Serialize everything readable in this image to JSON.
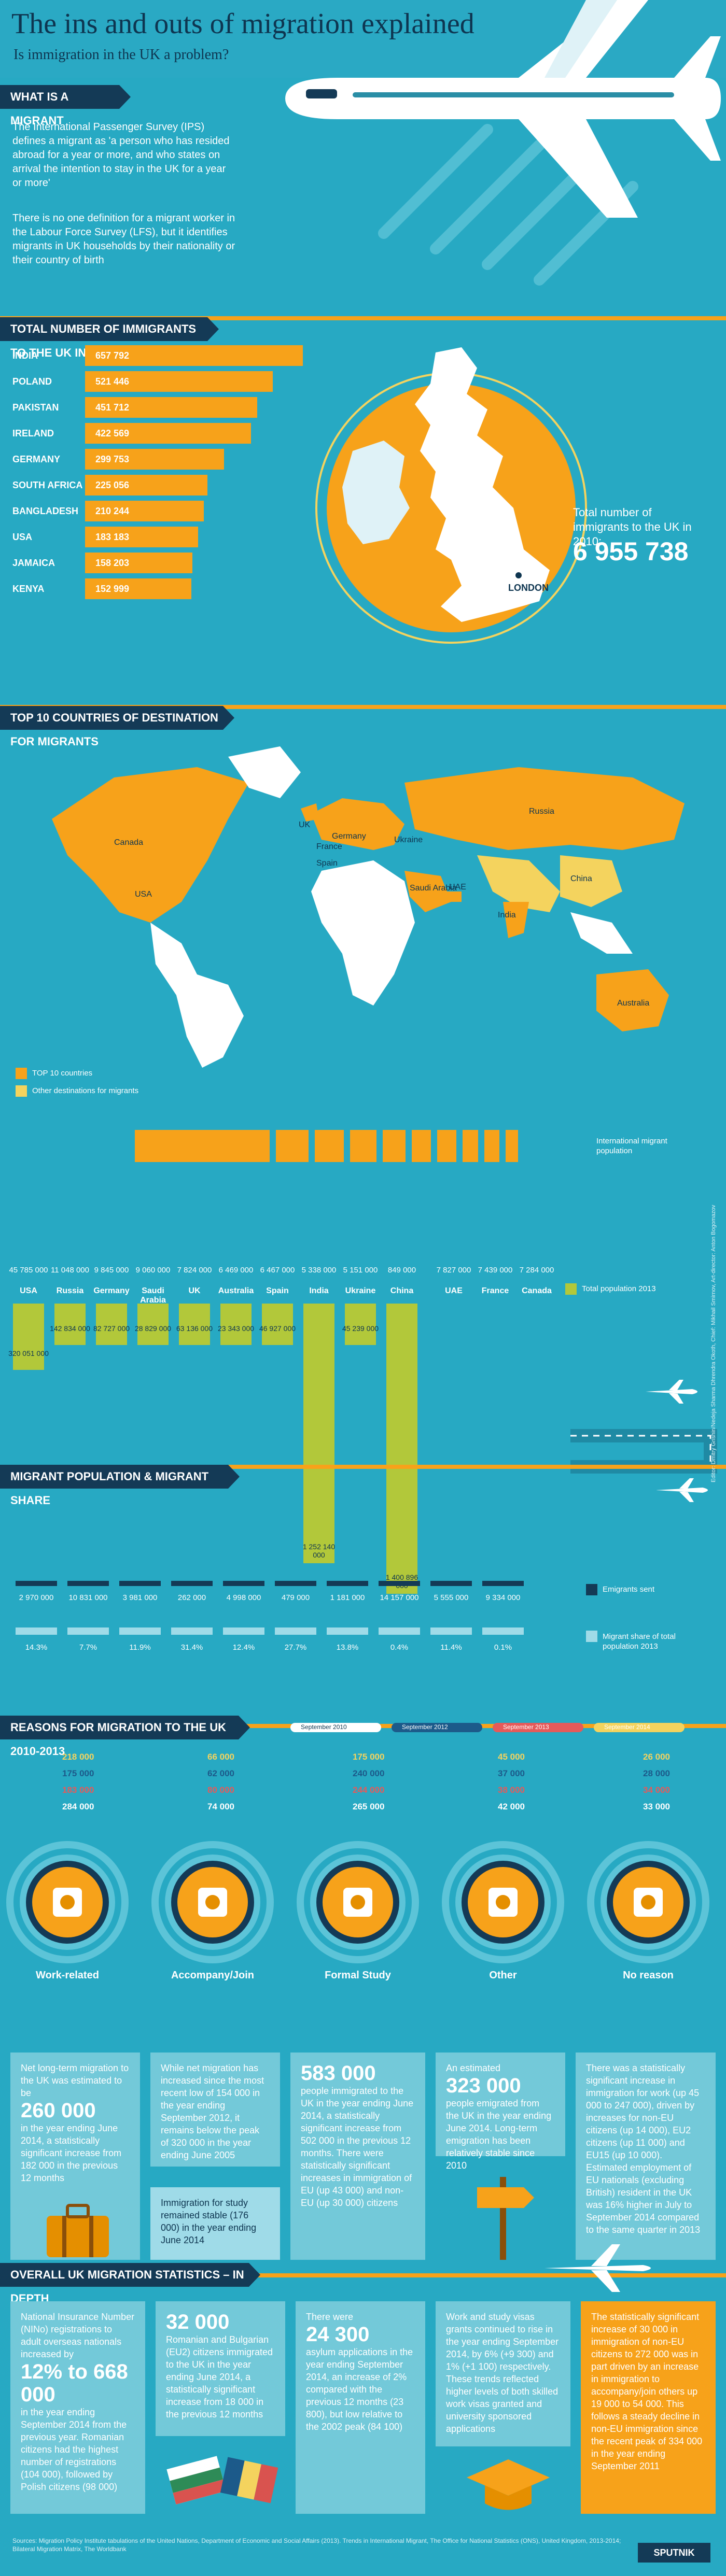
{
  "header": {
    "title": "The ins and outs of migration explained",
    "subtitle": "Is immigration in the UK a problem?"
  },
  "migrant_def": {
    "label": "WHAT IS A MIGRANT",
    "p1": "The International Passenger Survey (IPS) defines a migrant as 'a person who has resided abroad for a year or more, and who states on arrival the intention to stay in the UK for a year or more'",
    "p2": "There is no one definition for a migrant worker in the Labour Force Survey (LFS), but it identifies migrants in UK households by their nationality or their country of birth"
  },
  "immigrants": {
    "label": "TOTAL NUMBER OF IMMIGRANTS TO THE UK IN 2010",
    "rows": [
      {
        "country": "INDIA",
        "value": "657 792",
        "v": 657792
      },
      {
        "country": "POLAND",
        "value": "521 446",
        "v": 521446
      },
      {
        "country": "PAKISTAN",
        "value": "451 712",
        "v": 451712
      },
      {
        "country": "IRELAND",
        "value": "422 569",
        "v": 422569
      },
      {
        "country": "GERMANY",
        "value": "299 753",
        "v": 299753
      },
      {
        "country": "SOUTH AFRICA",
        "value": "225 056",
        "v": 225056
      },
      {
        "country": "BANGLADESH",
        "value": "210 244",
        "v": 210244
      },
      {
        "country": "USA",
        "value": "183 183",
        "v": 183183
      },
      {
        "country": "JAMAICA",
        "value": "158 203",
        "v": 158203
      },
      {
        "country": "KENYA",
        "value": "152 999",
        "v": 152999
      }
    ],
    "total_label": "Total number of immigrants to the UK in 2010:",
    "total_value": "6 955 738",
    "city": "LONDON"
  },
  "destinations": {
    "label": "TOP 10 COUNTRIES OF DESTINATION FOR MIGRANTS",
    "map_labels": [
      "Canada",
      "USA",
      "UK",
      "Germany",
      "France",
      "Spain",
      "Ukraine",
      "Russia",
      "Saudi Arabia",
      "UAE",
      "India",
      "China",
      "Australia"
    ],
    "legend_top10": "TOP 10 countries",
    "legend_other": "Other destinations for migrants",
    "legend_intl": "International migrant population",
    "legend_total": "Total population 2013",
    "colors": {
      "top10": "#f7a21a",
      "other": "#f4d35e",
      "total": "#b2c83a"
    }
  },
  "population": {
    "countries": [
      {
        "name": "USA",
        "migrants": "45 785 000",
        "total": "320 051 000",
        "sent": "2 970 000",
        "share": "14.3%",
        "m": 45785000,
        "t": 320051000
      },
      {
        "name": "Russia",
        "migrants": "11 048 000",
        "total": "142 834 000",
        "sent": "10 831 000",
        "share": "7.7%",
        "m": 11048000,
        "t": 142834000
      },
      {
        "name": "Germany",
        "migrants": "9 845 000",
        "total": "82 727 000",
        "sent": "3 981 000",
        "share": "11.9%",
        "m": 9845000,
        "t": 82727000
      },
      {
        "name": "Saudi Arabia",
        "migrants": "9 060 000",
        "total": "28 829 000",
        "sent": "262 000",
        "share": "31.4%",
        "m": 9060000,
        "t": 28829000
      },
      {
        "name": "UK",
        "migrants": "7 824 000",
        "total": "63 136 000",
        "sent": "4 998 000",
        "share": "12.4%",
        "m": 7824000,
        "t": 63136000
      },
      {
        "name": "Australia",
        "migrants": "6 469 000",
        "total": "23 343 000",
        "sent": "479 000",
        "share": "27.7%",
        "m": 6469000,
        "t": 23343000
      },
      {
        "name": "Spain",
        "migrants": "6 467 000",
        "total": "46 927 000",
        "sent": "1 181 000",
        "share": "13.8%",
        "m": 6467000,
        "t": 46927000
      },
      {
        "name": "India",
        "migrants": "5 338 000",
        "total": "1 252 140 000",
        "sent": "14 157 000",
        "share": "0.4%",
        "m": 5338000,
        "t": 1252140000
      },
      {
        "name": "Ukraine",
        "migrants": "5 151 000",
        "total": "45 239 000",
        "sent": "5 555 000",
        "share": "11.4%",
        "m": 5151000,
        "t": 45239000
      },
      {
        "name": "China",
        "migrants": "849 000",
        "total": "1 400 896 000",
        "sent": "9 334 000",
        "share": "0.1%",
        "m": 849000,
        "t": 1400896000
      },
      {
        "name": "UAE",
        "migrants": "7 827 000",
        "total": "",
        "sent": "",
        "share": "",
        "m": 7827000,
        "t": 0
      },
      {
        "name": "France",
        "migrants": "7 439 000",
        "total": "",
        "sent": "",
        "share": "",
        "m": 7439000,
        "t": 0
      },
      {
        "name": "Canada",
        "migrants": "7 284 000",
        "total": "",
        "sent": "",
        "share": "",
        "m": 7284000,
        "t": 0
      }
    ],
    "label": "MIGRANT POPULATION & MIGRANT SHARE",
    "legend_sent": "Emigrants sent",
    "legend_share": "Migrant share of total population 2013"
  },
  "reasons": {
    "label": "REASONS FOR MIGRATION TO THE UK 2010-2013",
    "legend": [
      "September 2010",
      "September 2012",
      "September 2013",
      "September 2014"
    ],
    "legend_colors": [
      "#ffffff",
      "#1c5a8a",
      "#e55a5a",
      "#f4d35e"
    ],
    "items": [
      {
        "name": "Work-related",
        "vals": [
          "218 000",
          "175 000",
          "183 000",
          "284 000"
        ]
      },
      {
        "name": "Accompany/Join",
        "vals": [
          "66 000",
          "62 000",
          "80 000",
          "74 000"
        ]
      },
      {
        "name": "Formal Study",
        "vals": [
          "175 000",
          "240 000",
          "244 000",
          "265 000"
        ]
      },
      {
        "name": "Other",
        "vals": [
          "45 000",
          "37 000",
          "38 000",
          "42 000"
        ]
      },
      {
        "name": "No reason",
        "vals": [
          "26 000",
          "28 000",
          "34 000",
          "33 000"
        ]
      }
    ]
  },
  "stats1": {
    "b1_pre": "Net long-term migration to the UK was estimated to be",
    "b1_big": "260 000",
    "b1_post": "in the year ending June 2014, a statistically significant increase from 182 000 in the previous 12 months",
    "b2": "While net migration has increased since the most recent low of 154 000 in the year ending September 2012, it remains below the peak of 320 000 in the year ending June 2005",
    "b2b": "Immigration for study remained stable (176 000) in the year ending June 2014",
    "b3_big": "583 000",
    "b3": "people immigrated to the UK in the year ending June 2014, a statistically significant increase from 502 000 in the previous 12 months. There were statistically significant increases in immigration of EU (up 43 000) and non-EU (up 30 000) citizens",
    "b4_pre": "An estimated",
    "b4_big": "323 000",
    "b4": "people emigrated from the UK in the year ending June 2014. Long-term emigration has been relatively stable since 2010",
    "b5": "There was a statistically significant increase in immigration for work (up 45 000 to 247 000), driven by increases for non-EU citizens (up 14 000), EU2 citizens (up 11 000) and EU15 (up 10 000). Estimated employment of EU nationals (excluding British) resident in the UK was 16% higher in July to September 2014 compared to the same quarter in 2013"
  },
  "stats2": {
    "label": "OVERALL UK MIGRATION STATISTICS – IN DEPTH",
    "c1_pre": "National Insurance Number (NINo) registrations to adult overseas nationals increased by",
    "c1_big": "12% to 668 000",
    "c1": "in the year ending September 2014 from the previous year. Romanian citizens had the highest number of registrations (104 000), followed by Polish citizens (98 000)",
    "c2_big": "32 000",
    "c2": "Romanian and Bulgarian (EU2) citizens immigrated to the UK in the year ending June 2014, a statistically significant increase from 18 000 in the previous 12 months",
    "c3_pre": "There were",
    "c3_big": "24 300",
    "c3": "asylum applications in the year ending September 2014, an increase of 2% compared with the previous 12 months (23 800), but low relative to the 2002 peak (84 100)",
    "c4": "Work and study visas grants continued to rise in the year ending September 2014, by 6% (+9 300) and 1% (+1 100) respectively. These trends reflected higher levels of both skilled work visas granted and university sponsored applications",
    "c5": "The statistically significant increase of 30 000 in immigration of non-EU citizens to 272 000 was in part driven by an increase in immigration to accompany/join others up 19 000 to 54 000. This follows a steady decline in non-EU immigration since the recent peak of 334 000 in the year ending September 2011"
  },
  "credits": {
    "side": "Editor: Dmitry Grishin/Nedeja Sharma Dhrendra Okoth, Chief: Mikhail Smirnov, Art-director: Anton Bogomazov",
    "sources": "Sources: Migration Policy Institute tabulations of the United Nations, Department of Economic and Social Affairs (2013). Trends in International Migrant, The Office for National Statistics (ONS), United Kingdom, 2013-2014; Bilateral Migration Matrix, The Worldbank",
    "brand": "SPUTNIK"
  }
}
